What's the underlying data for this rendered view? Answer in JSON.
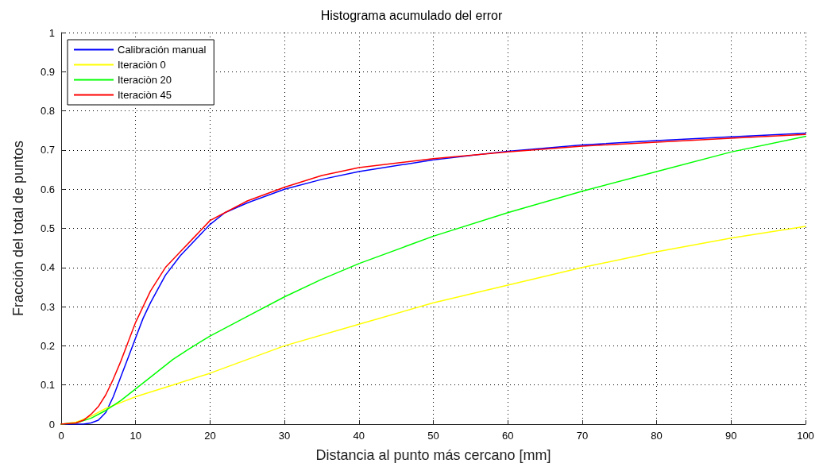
{
  "chart_data": {
    "type": "line",
    "title": "Histograma acumulado del error",
    "xlabel": "Distancia al punto más cercano [mm]",
    "ylabel": "Fracción del total de puntos",
    "xlim": [
      0,
      100
    ],
    "xticks": [
      0,
      10,
      20,
      30,
      40,
      50,
      60,
      70,
      80,
      90,
      100
    ],
    "ylim": [
      0,
      1
    ],
    "yticks": [
      0,
      0.1,
      0.2,
      0.3,
      0.4,
      0.5,
      0.6,
      0.7,
      0.8,
      0.9,
      1
    ],
    "grid": true,
    "legend": "top left",
    "marker": "none",
    "line_style": "solid",
    "series": [
      {
        "name": "Calibración manual",
        "color": "#0000ff",
        "x": [
          0,
          3,
          4,
          5,
          6,
          7,
          8,
          9,
          10,
          11,
          12,
          14,
          16,
          18,
          20,
          22,
          25,
          30,
          35,
          40,
          50,
          60,
          70,
          80,
          90,
          100
        ],
        "values": [
          0,
          0,
          0.003,
          0.01,
          0.03,
          0.07,
          0.12,
          0.17,
          0.22,
          0.27,
          0.31,
          0.38,
          0.43,
          0.47,
          0.51,
          0.54,
          0.565,
          0.6,
          0.625,
          0.645,
          0.675,
          0.697,
          0.713,
          0.724,
          0.734,
          0.743
        ]
      },
      {
        "name": "Iteraciòn 0",
        "color": "#ffff00",
        "x": [
          0,
          2,
          4,
          6,
          8,
          10,
          15,
          20,
          30,
          40,
          50,
          60,
          70,
          80,
          90,
          100
        ],
        "values": [
          0,
          0.005,
          0.02,
          0.04,
          0.055,
          0.07,
          0.1,
          0.13,
          0.2,
          0.255,
          0.31,
          0.355,
          0.4,
          0.44,
          0.475,
          0.505
        ]
      },
      {
        "name": "Iteraciòn 20",
        "color": "#00ff00",
        "x": [
          0,
          2,
          4,
          6,
          8,
          10,
          12,
          15,
          17,
          20,
          25,
          30,
          35,
          40,
          50,
          60,
          70,
          80,
          90,
          100
        ],
        "values": [
          0,
          0.003,
          0.015,
          0.035,
          0.06,
          0.09,
          0.12,
          0.165,
          0.19,
          0.225,
          0.275,
          0.325,
          0.37,
          0.41,
          0.48,
          0.54,
          0.595,
          0.645,
          0.695,
          0.735
        ]
      },
      {
        "name": "Iteraciòn 45",
        "color": "#ff0000",
        "x": [
          0,
          2,
          3,
          4,
          5,
          6,
          7,
          8,
          9,
          10,
          11,
          12,
          14,
          16,
          18,
          20,
          22,
          25,
          30,
          35,
          40,
          50,
          60,
          70,
          80,
          90,
          100
        ],
        "values": [
          0,
          0.003,
          0.01,
          0.025,
          0.045,
          0.075,
          0.115,
          0.16,
          0.21,
          0.26,
          0.3,
          0.34,
          0.4,
          0.44,
          0.48,
          0.52,
          0.54,
          0.57,
          0.605,
          0.635,
          0.655,
          0.678,
          0.695,
          0.71,
          0.72,
          0.73,
          0.74
        ]
      }
    ]
  }
}
